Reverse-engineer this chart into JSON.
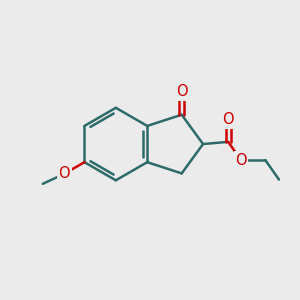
{
  "bg_color": "#ebebeb",
  "bond_color": "#2d6b6b",
  "heteroatom_color": "#cc0000",
  "bond_width": 1.8,
  "font_size": 10.5,
  "fig_size": [
    3.0,
    3.0
  ],
  "dpi": 100,
  "xlim": [
    0,
    10
  ],
  "ylim": [
    0,
    10
  ]
}
